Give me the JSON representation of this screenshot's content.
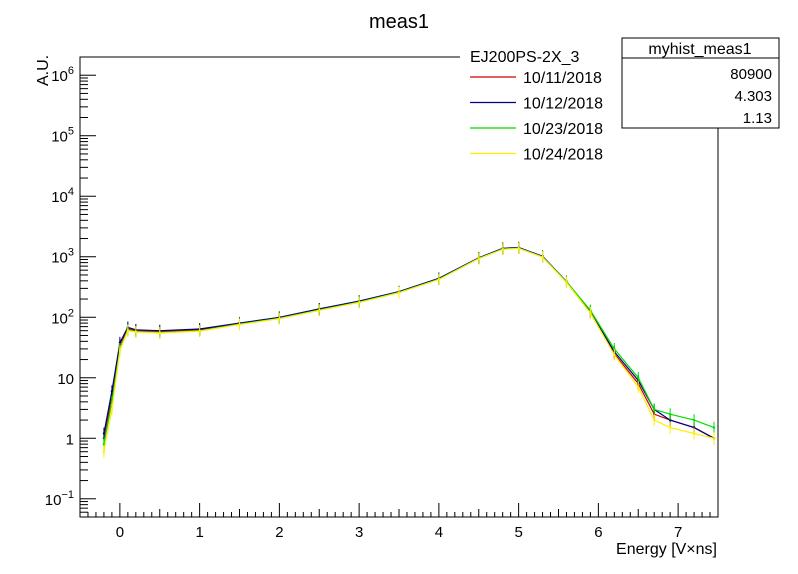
{
  "chart_data": {
    "type": "line",
    "title": "meas1",
    "xlabel": "Energy [V×ns]",
    "ylabel": "A.U.",
    "xlim": [
      -0.5,
      7.5
    ],
    "ylim": [
      0.05,
      2000000
    ],
    "log_y": true,
    "grid": false,
    "x_ticks": [
      "0",
      "1",
      "2",
      "3",
      "4",
      "5",
      "6",
      "7"
    ],
    "y_ticks": [
      {
        "v": 0.1,
        "b": "10",
        "e": "−1"
      },
      {
        "v": 1,
        "b": "1",
        "e": ""
      },
      {
        "v": 10,
        "b": "10",
        "e": ""
      },
      {
        "v": 100,
        "b": "10",
        "e": "2"
      },
      {
        "v": 1000,
        "b": "10",
        "e": "3"
      },
      {
        "v": 10000,
        "b": "10",
        "e": "4"
      },
      {
        "v": 100000,
        "b": "10",
        "e": "5"
      },
      {
        "v": 1000000,
        "b": "10",
        "e": "6"
      }
    ],
    "legend": {
      "header": "EJ200PS-2X_3",
      "position": "top-right"
    },
    "stats_box": {
      "title": "myhist_meas1",
      "values": [
        "80900",
        "4.303",
        "1.13"
      ]
    },
    "series": [
      {
        "name": "10/11/2018",
        "color": "#d00000",
        "x": [
          -0.2,
          -0.1,
          0,
          0.1,
          0.2,
          0.5,
          1,
          1.5,
          2,
          2.5,
          3,
          3.5,
          4,
          4.5,
          4.8,
          5,
          5.3,
          5.6,
          5.9,
          6.2,
          6.5,
          6.7,
          6.9,
          7.2,
          7.45
        ],
        "y": [
          1,
          5,
          35,
          65,
          60,
          58,
          62,
          78,
          98,
          135,
          180,
          260,
          430,
          950,
          1350,
          1400,
          1000,
          380,
          120,
          25,
          8,
          2.5,
          2,
          1.5,
          1
        ]
      },
      {
        "name": "10/12/2018",
        "color": "#00008b",
        "x": [
          -0.2,
          -0.1,
          0,
          0.1,
          0.2,
          0.5,
          1,
          1.5,
          2,
          2.5,
          3,
          3.5,
          4,
          4.5,
          4.8,
          5,
          5.3,
          5.6,
          5.9,
          6.2,
          6.5,
          6.7,
          6.9,
          7.2,
          7.45
        ],
        "y": [
          1.2,
          6,
          38,
          68,
          62,
          60,
          64,
          80,
          100,
          138,
          185,
          265,
          440,
          960,
          1380,
          1420,
          1020,
          390,
          125,
          27,
          9,
          3,
          2,
          1.5,
          1
        ]
      },
      {
        "name": "10/23/2018",
        "color": "#00dd00",
        "x": [
          -0.2,
          -0.1,
          0,
          0.1,
          0.2,
          0.5,
          1,
          1.5,
          2,
          2.5,
          3,
          3.5,
          4,
          4.5,
          4.8,
          5,
          5.3,
          5.6,
          5.9,
          6.2,
          6.5,
          6.7,
          6.9,
          7.2,
          7.45
        ],
        "y": [
          0.8,
          4,
          30,
          62,
          58,
          56,
          60,
          77,
          96,
          132,
          178,
          258,
          425,
          940,
          1340,
          1390,
          995,
          385,
          130,
          30,
          10,
          3,
          2.5,
          2,
          1.5
        ]
      },
      {
        "name": "10/24/2018",
        "color": "#ffee00",
        "x": [
          -0.2,
          -0.1,
          0,
          0.1,
          0.2,
          0.5,
          1,
          1.5,
          2,
          2.5,
          3,
          3.5,
          4,
          4.5,
          4.8,
          5,
          5.3,
          5.6,
          5.9,
          6.2,
          6.5,
          6.7,
          6.9,
          7.2,
          7.45
        ],
        "y": [
          0.6,
          3,
          28,
          60,
          57,
          55,
          59,
          76,
          95,
          130,
          176,
          255,
          420,
          935,
          1330,
          1380,
          990,
          375,
          118,
          24,
          7,
          2,
          1.5,
          1.2,
          1
        ]
      }
    ]
  }
}
